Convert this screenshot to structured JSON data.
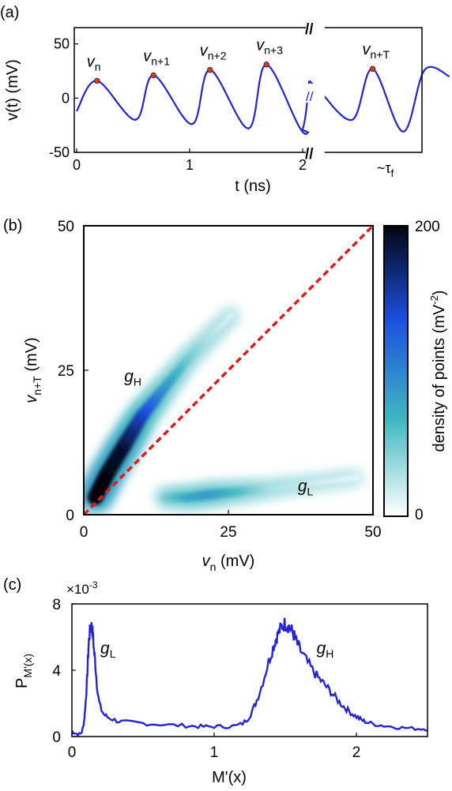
{
  "colors": {
    "trace": "#2323d8",
    "marker": "#e03a1a",
    "diagonal": "#e11a1a",
    "colormap": [
      "#ffffff",
      "#40b8c0",
      "#1c4fe0",
      "#030512"
    ]
  },
  "chart_data": [
    {
      "panel_label": "(a)",
      "type": "line",
      "xlabel": "t (ns)",
      "ylabel": "v(t) (mV)",
      "xlim": [
        0,
        2.45
      ],
      "ylim": [
        -50,
        65
      ],
      "x_ticks": [
        "0",
        "1",
        "2"
      ],
      "x_tick_extra": "~τ",
      "x_tick_extra_sub": "f",
      "y_ticks": [
        "50",
        "0",
        "-50"
      ],
      "axis_break": "//",
      "series": [
        {
          "x": [
            0.0,
            0.18,
            0.52,
            0.68,
            1.02,
            1.18,
            1.52,
            1.68,
            2.02,
            2.12
          ],
          "values": [
            -12,
            16,
            -20,
            21,
            -24,
            26,
            -28,
            31,
            -33,
            16
          ]
        },
        {
          "x": [
            2.12,
            2.2,
            2.5,
            2.68,
            2.95,
            3.14,
            3.36
          ],
          "values": [
            16,
            8,
            -20,
            27,
            -31,
            26,
            20
          ]
        }
      ],
      "peaks": [
        {
          "label": "v",
          "sub": "n",
          "x": 0.18,
          "y": 16
        },
        {
          "label": "v",
          "sub": "n+1",
          "x": 0.68,
          "y": 21
        },
        {
          "label": "v",
          "sub": "n+2",
          "x": 1.18,
          "y": 26
        },
        {
          "label": "v",
          "sub": "n+3",
          "x": 1.68,
          "y": 31
        },
        {
          "label": "v",
          "sub": "n+T",
          "x": 2.68,
          "y": 27
        }
      ]
    },
    {
      "panel_label": "(b)",
      "type": "heatmap",
      "xlabel": "v",
      "xlabel_sub": "n",
      "xlabel_unit": " (mV)",
      "ylabel": "v",
      "ylabel_sub": "n+T",
      "ylabel_unit": " (mV)",
      "xlim": [
        0,
        50
      ],
      "ylim": [
        0,
        50
      ],
      "x_ticks": [
        "0",
        "25",
        "50"
      ],
      "y_ticks": [
        "0",
        "25",
        "50"
      ],
      "diagonal": [
        [
          0,
          0
        ],
        [
          50,
          50
        ]
      ],
      "annotations": [
        {
          "label": "g",
          "sub": "H",
          "x": 7,
          "y": 23
        },
        {
          "label": "g",
          "sub": "L",
          "x": 37,
          "y": 4
        }
      ],
      "clusters": [
        {
          "name": "g_H",
          "x": [
            2,
            4,
            7,
            10,
            14,
            18,
            22,
            26
          ],
          "y": [
            3,
            7,
            12,
            17,
            22,
            27,
            31,
            35
          ],
          "density": [
            200,
            200,
            190,
            150,
            90,
            50,
            25,
            10
          ]
        },
        {
          "name": "g_L",
          "x": [
            14,
            18,
            22,
            27,
            32,
            40,
            48
          ],
          "y": [
            3,
            3,
            3.5,
            4,
            4.5,
            5.5,
            6.5
          ],
          "density": [
            45,
            75,
            85,
            60,
            30,
            15,
            5
          ]
        }
      ],
      "colorbar": {
        "label": "density of points (mV",
        "label_sup": "-2",
        "label_end": ")",
        "range": [
          0,
          200
        ],
        "ticks": [
          "200",
          "0"
        ]
      }
    },
    {
      "panel_label": "(c)",
      "type": "line",
      "xlabel": "M'(x)",
      "ylabel": "P",
      "ylabel_sub": "M'(x)",
      "xlim": [
        0,
        2.5
      ],
      "ylim": [
        0,
        8
      ],
      "scale_label": "×10",
      "scale_sup": "-3",
      "x_ticks": [
        "0",
        "1",
        "2"
      ],
      "y_ticks": [
        "8",
        "4",
        "0"
      ],
      "annotations": [
        {
          "label": "g",
          "sub": "L",
          "x": 0.2,
          "y": 5.0
        },
        {
          "label": "g",
          "sub": "H",
          "x": 1.72,
          "y": 5.0
        }
      ],
      "series": [
        {
          "x": [
            0.0,
            0.07,
            0.1,
            0.12,
            0.14,
            0.16,
            0.2,
            0.3,
            0.5,
            0.8,
            1.0,
            1.2,
            1.3,
            1.4,
            1.45,
            1.5,
            1.55,
            1.6,
            1.7,
            1.8,
            1.9,
            2.0,
            2.1,
            2.3,
            2.5
          ],
          "values": [
            0.3,
            0.3,
            2.5,
            5.8,
            6.6,
            4.8,
            1.8,
            1.0,
            0.8,
            0.65,
            0.6,
            0.8,
            2.2,
            5.0,
            6.2,
            6.8,
            6.3,
            5.3,
            3.9,
            2.9,
            1.9,
            1.2,
            0.8,
            0.55,
            0.45
          ]
        }
      ]
    }
  ]
}
